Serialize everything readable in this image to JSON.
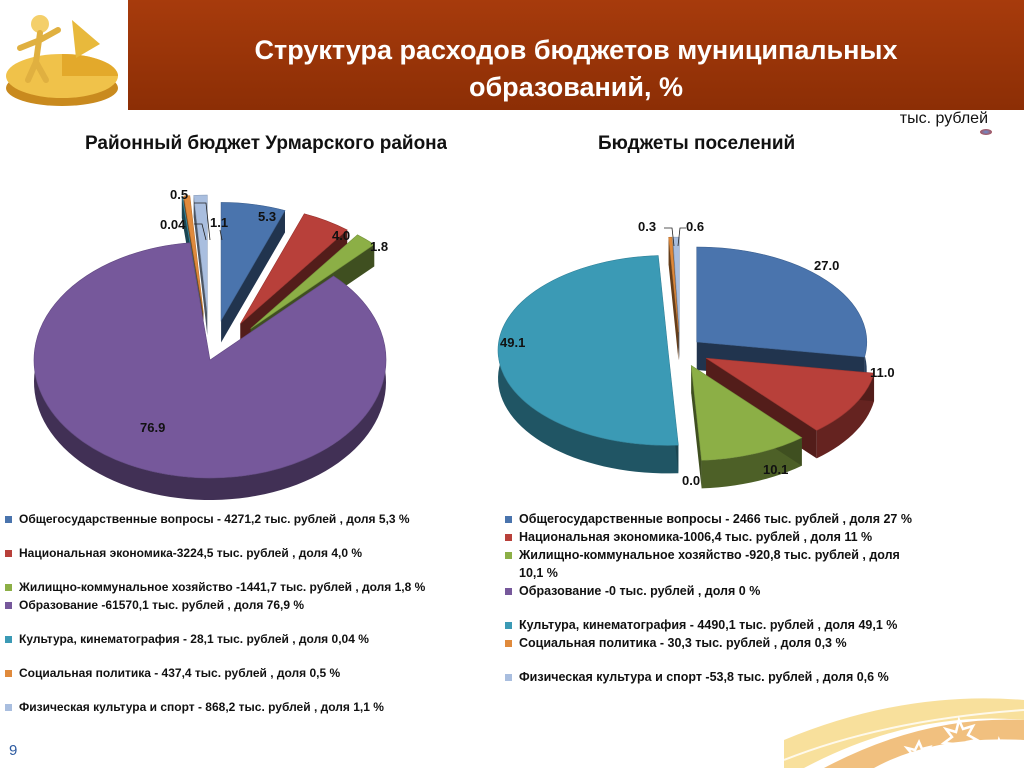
{
  "header": {
    "title": "Структура расходов бюджетов муниципальных\nобразований, %"
  },
  "unit": "тыс. рублей",
  "page_number": "9",
  "chart_data": [
    {
      "type": "pie",
      "title": "Районный бюджет Урмарского района",
      "categories": [
        "Общегосударственные вопросы",
        "Национальная экономика",
        "Жилищно-коммунальное хозяйство",
        "Образование",
        "Культура, кинематография",
        "Социальная политика",
        "Физическая культура и спорт"
      ],
      "values": [
        5.3,
        4.0,
        1.8,
        76.9,
        0.04,
        0.5,
        1.1
      ],
      "value_labels": [
        "5.3",
        "4.0",
        "1.8",
        "76.9",
        "0.04",
        "0.5",
        "1.1"
      ],
      "colors": [
        "#4a74ad",
        "#b8403a",
        "#8caf46",
        "#76589b",
        "#3b9ab5",
        "#e08a3c",
        "#a9bedf"
      ],
      "legend": [
        "Общегосударственные вопросы - 4271,2 тыс. рублей , доля 5,3 %",
        "Национальная экономика-3224,5 тыс. рублей , доля 4,0 %",
        "Жилищно-коммунальное хозяйство -1441,7 тыс. рублей , доля 1,8 %",
        "Образование  -61570,1 тыс. рублей , доля 76,9 %",
        "Культура, кинематография - 28,1 тыс. рублей , доля 0,04  %",
        "Социальная политика - 437,4 тыс. рублей , доля  0,5 %",
        "Физическая культура и спорт - 868,2 тыс. рублей , доля 1,1 %"
      ]
    },
    {
      "type": "pie",
      "title": "Бюджеты   поселений",
      "categories": [
        "Общегосударственные вопросы",
        "Национальная экономика",
        "Жилищно-коммунальное хозяйство",
        "Образование",
        "Культура, кинематография",
        "Социальная политика",
        "Физическая культура и спорт"
      ],
      "values": [
        27.0,
        11.0,
        10.1,
        0.0,
        49.1,
        0.3,
        0.6
      ],
      "value_labels": [
        "27.0",
        "11.0",
        "10.1",
        "0.0",
        "49.1",
        "0.3",
        "0.6"
      ],
      "colors": [
        "#4a74ad",
        "#b8403a",
        "#8caf46",
        "#76589b",
        "#3b9ab5",
        "#e08a3c",
        "#a9bedf"
      ],
      "legend": [
        "Общегосударственные вопросы - 2466 тыс. рублей , доля 27 %",
        "Национальная экономика-1006,4 тыс. рублей , доля 11 %",
        "Жилищно-коммунальное хозяйство -920,8 тыс. рублей , доля 10,1 %",
        "Образование  -0 тыс. рублей , доля 0 %",
        "Культура, кинематография - 4490,1 тыс. рублей , доля 49,1  %",
        "Социальная политика - 30,3 тыс. рублей , доля  0,3 %",
        "Физическая культура и спорт -53,8 тыс. рублей , доля 0,6 %"
      ]
    }
  ]
}
